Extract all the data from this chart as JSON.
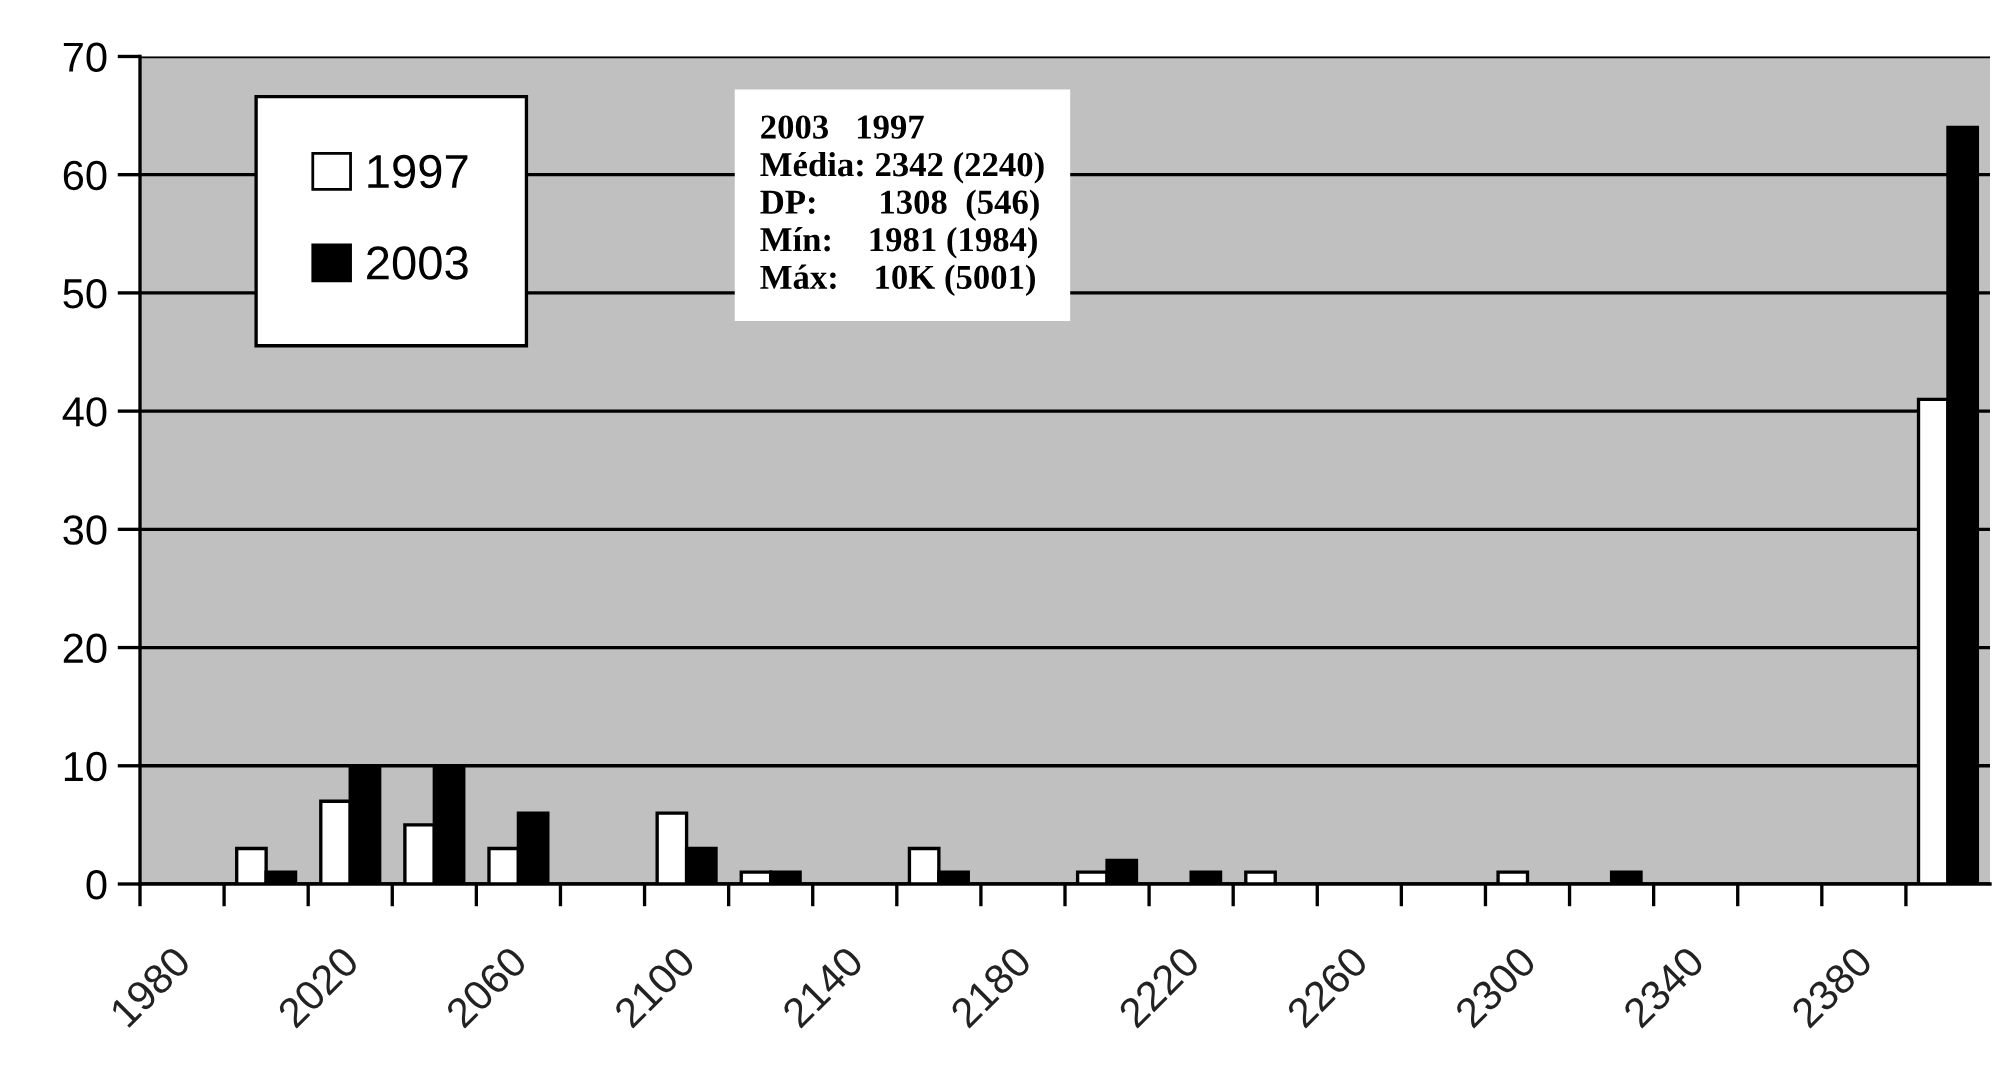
{
  "chart_data": {
    "type": "bar",
    "categories": [
      "1980",
      null,
      "2020",
      null,
      "2060",
      null,
      "2100",
      null,
      "2140",
      null,
      "2180",
      null,
      "2220",
      null,
      "2260",
      null,
      "2300",
      null,
      "2340",
      null,
      "2380",
      null
    ],
    "series": [
      {
        "name": "1997",
        "color": "#ffffff",
        "values": [
          null,
          3,
          7,
          5,
          3,
          null,
          6,
          1,
          null,
          3,
          null,
          1,
          null,
          1,
          null,
          null,
          1,
          null,
          null,
          null,
          null,
          41
        ]
      },
      {
        "name": "2003",
        "color": "#000000",
        "values": [
          null,
          1,
          10,
          10,
          6,
          null,
          3,
          1,
          null,
          1,
          null,
          2,
          1,
          null,
          null,
          null,
          null,
          1,
          null,
          null,
          null,
          64
        ]
      }
    ],
    "ylim": [
      0,
      70
    ],
    "yticks": [
      0,
      10,
      20,
      30,
      40,
      50,
      60,
      70
    ],
    "grid": "y",
    "legend": "top left",
    "annotations": [
      "2003   1997",
      "Média: 2342 (2240)",
      "DP:       1308  (546)",
      "Mín:    1981 (1984)",
      "Máx:    10K (5001)"
    ]
  }
}
